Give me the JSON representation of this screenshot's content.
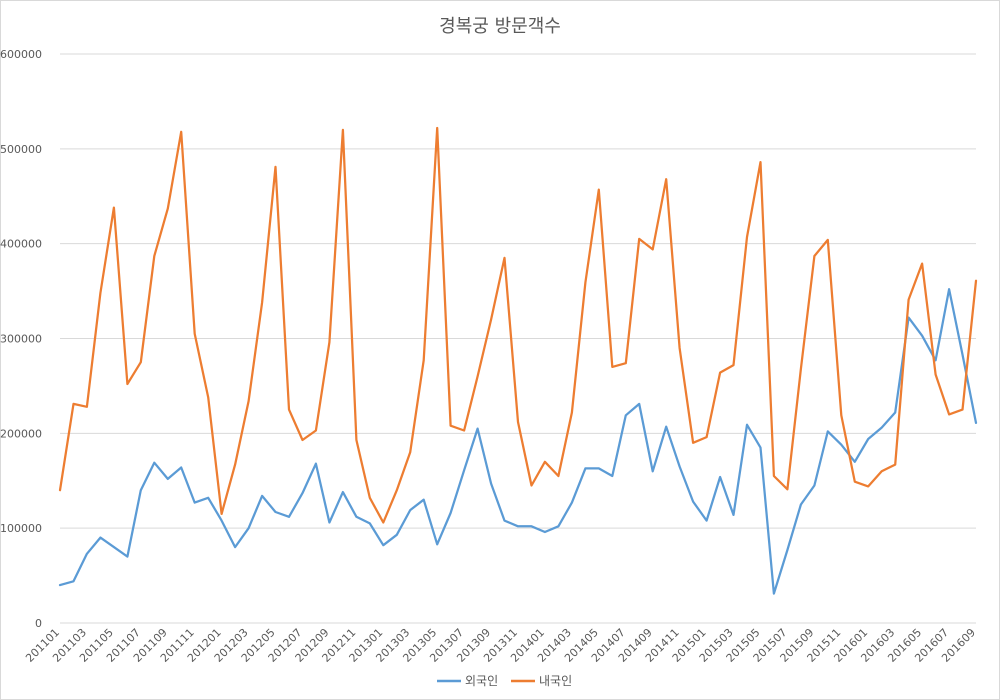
{
  "chart_data": {
    "type": "line",
    "title": "경복궁 방문객수",
    "xlabel": "",
    "ylabel": "",
    "ylim": [
      0,
      600000
    ],
    "yticks": [
      0,
      100000,
      200000,
      300000,
      400000,
      500000,
      600000
    ],
    "grid": true,
    "legend_position": "bottom",
    "categories": [
      "201101",
      "201102",
      "201103",
      "201104",
      "201105",
      "201106",
      "201107",
      "201108",
      "201109",
      "201110",
      "201111",
      "201112",
      "201201",
      "201202",
      "201203",
      "201204",
      "201205",
      "201206",
      "201207",
      "201208",
      "201209",
      "201210",
      "201211",
      "201212",
      "201301",
      "201302",
      "201303",
      "201304",
      "201305",
      "201306",
      "201307",
      "201308",
      "201309",
      "201310",
      "201311",
      "201312",
      "201401",
      "201402",
      "201403",
      "201404",
      "201405",
      "201406",
      "201407",
      "201408",
      "201409",
      "201410",
      "201411",
      "201412",
      "201501",
      "201502",
      "201503",
      "201504",
      "201505",
      "201506",
      "201507",
      "201508",
      "201509",
      "201510",
      "201511",
      "201512",
      "201601",
      "201602",
      "201603",
      "201604",
      "201605",
      "201606",
      "201607",
      "201608",
      "201609"
    ],
    "series": [
      {
        "name": "외국인",
        "color": "#5b9bd5",
        "values": [
          40000,
          44000,
          73000,
          90000,
          80000,
          70000,
          140000,
          169000,
          152000,
          164000,
          127000,
          132000,
          108000,
          80000,
          100000,
          134000,
          117000,
          112000,
          137000,
          168000,
          106000,
          138000,
          112000,
          105000,
          82000,
          93000,
          119000,
          130000,
          83000,
          116000,
          161000,
          205000,
          147000,
          108000,
          102000,
          102000,
          96000,
          102000,
          127000,
          163000,
          163000,
          155000,
          219000,
          231000,
          160000,
          207000,
          165000,
          128000,
          108000,
          154000,
          114000,
          209000,
          185000,
          31000,
          77000,
          125000,
          145000,
          202000,
          188000,
          170000,
          194000,
          206000,
          222000,
          322000,
          303000,
          277000,
          352000,
          283000,
          211000
        ]
      },
      {
        "name": "내국인",
        "color": "#ed7d31",
        "values": [
          140000,
          231000,
          228000,
          348000,
          438000,
          252000,
          275000,
          387000,
          437000,
          518000,
          305000,
          238000,
          115000,
          167000,
          234000,
          338000,
          481000,
          225000,
          193000,
          203000,
          296000,
          520000,
          193000,
          132000,
          106000,
          140000,
          180000,
          277000,
          522000,
          208000,
          203000,
          260000,
          320000,
          385000,
          212000,
          145000,
          170000,
          155000,
          222000,
          359000,
          457000,
          270000,
          274000,
          405000,
          394000,
          468000,
          290000,
          190000,
          196000,
          264000,
          272000,
          407000,
          486000,
          155000,
          141000,
          268000,
          387000,
          404000,
          219000,
          149000,
          144000,
          160000,
          167000,
          341000,
          379000,
          262000,
          220000,
          225000,
          361000
        ]
      }
    ]
  }
}
